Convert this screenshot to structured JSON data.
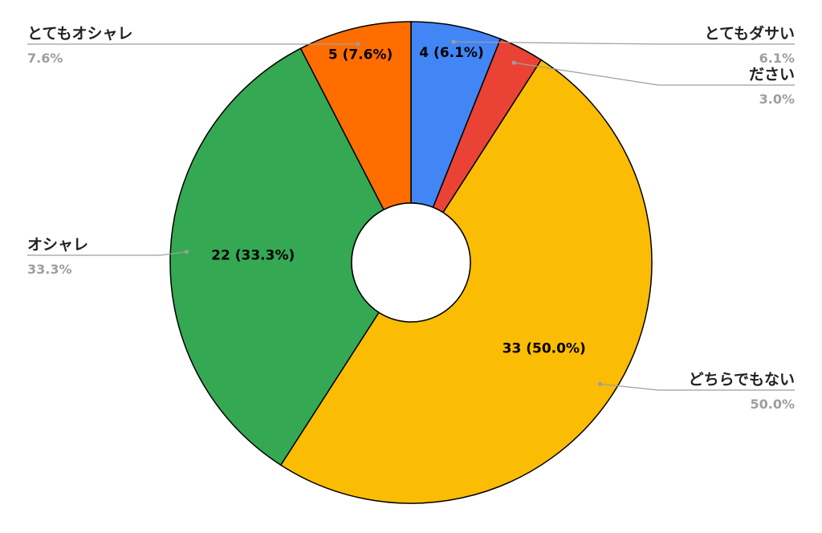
{
  "chart_data": {
    "type": "pie",
    "donut": true,
    "start_angle_deg": 0,
    "direction": "clockwise",
    "categories": [
      "とてもダサい",
      "ださい",
      "どちらでもない",
      "オシャレ",
      "とてもオシャレ"
    ],
    "values": [
      4,
      2,
      33,
      22,
      5
    ],
    "percent_labels": [
      "6.1%",
      "3.0%",
      "50.0%",
      "33.3%",
      "7.6%"
    ],
    "data_labels": [
      "4 (6.1%)",
      "",
      "33 (50.0%)",
      "22 (33.3%)",
      "5 (7.6%)"
    ],
    "colors": [
      "#4285f4",
      "#ea4335",
      "#fbbc04",
      "#34a853",
      "#ff6d01"
    ],
    "legend_placement": "labeled",
    "title": ""
  }
}
